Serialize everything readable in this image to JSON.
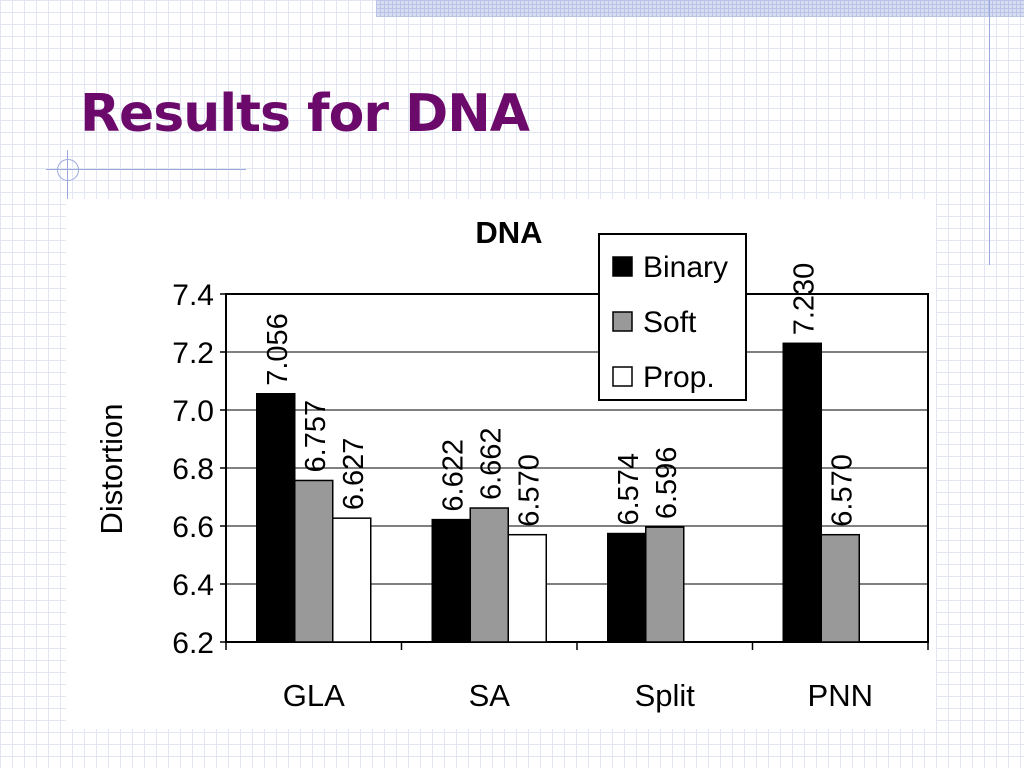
{
  "slide": {
    "title": "Results for DNA"
  },
  "colors": {
    "title": "#6b0a6b",
    "binary": "#000000",
    "soft": "#999999",
    "prop": "#ffffff"
  },
  "chart_data": {
    "type": "bar",
    "title": "DNA",
    "xlabel": "",
    "ylabel": "Distortion",
    "ylim": [
      6.2,
      7.4
    ],
    "yticks": [
      "6.2",
      "6.4",
      "6.6",
      "6.8",
      "7.0",
      "7.2",
      "7.4"
    ],
    "categories": [
      "GLA",
      "SA",
      "Split",
      "PNN"
    ],
    "series": [
      {
        "name": "Binary",
        "values": [
          7.056,
          6.622,
          6.574,
          7.23
        ],
        "labels": [
          "7.056",
          "6.622",
          "6.574",
          "7.230"
        ]
      },
      {
        "name": "Soft",
        "values": [
          6.757,
          6.662,
          6.596,
          6.57
        ],
        "labels": [
          "6.757",
          "6.662",
          "6.596",
          "6.570"
        ]
      },
      {
        "name": "Prop.",
        "values": [
          6.627,
          6.57,
          null,
          null
        ],
        "labels": [
          "6.627",
          "6.570",
          null,
          null
        ]
      }
    ],
    "legend": "top-right",
    "grid": true
  }
}
